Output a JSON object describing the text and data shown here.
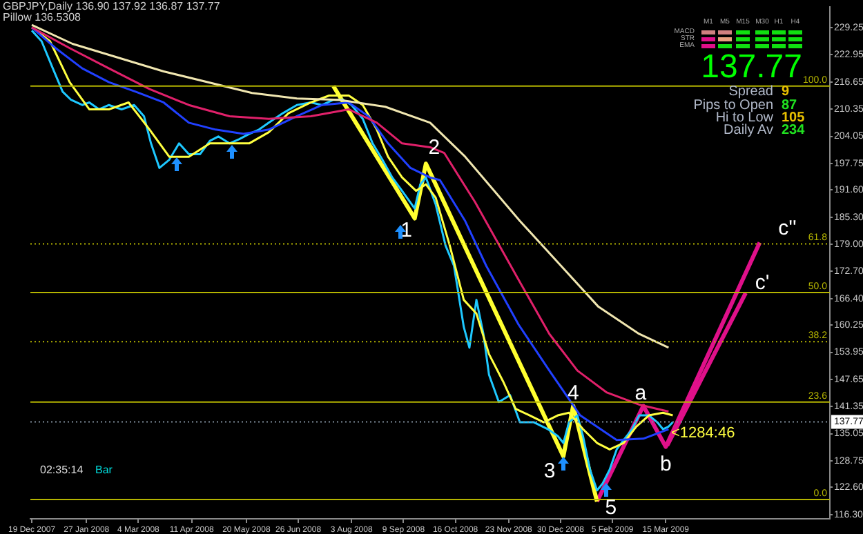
{
  "chart_data": {
    "type": "line",
    "title": "GBPJPY,Daily 136.90 137.92 136.87 137.77",
    "subtitle": "Pillow 136.5308",
    "xlim": [
      "2007-12-18",
      "2009-07-10"
    ],
    "xticks": [
      {
        "value": "2007-12-19",
        "label": "19 Dec 2007"
      },
      {
        "value": "2008-01-27",
        "label": "27 Jan 2008"
      },
      {
        "value": "2008-03-04",
        "label": "4 Mar 2008"
      },
      {
        "value": "2008-04-11",
        "label": "11 Apr 2008"
      },
      {
        "value": "2008-05-20",
        "label": "20 May 2008"
      },
      {
        "value": "2008-06-26",
        "label": "26 Jun 2008"
      },
      {
        "value": "2008-08-03",
        "label": "3 Aug 2008"
      },
      {
        "value": "2008-09-09",
        "label": "9 Sep 2008"
      },
      {
        "value": "2008-10-16",
        "label": "16 Oct 2008"
      },
      {
        "value": "2008-11-23",
        "label": "23 Nov 2008"
      },
      {
        "value": "2008-12-30",
        "label": "30 Dec 2008"
      },
      {
        "value": "2009-02-05",
        "label": "5 Feb 2009"
      },
      {
        "value": "2009-03-15",
        "label": "15 Mar 2009"
      }
    ],
    "ylim": [
      115.3,
      234.0
    ],
    "yticks": [
      {
        "value": 229.25,
        "label": "229.25"
      },
      {
        "value": 222.95,
        "label": "222.95"
      },
      {
        "value": 216.65,
        "label": "216.65"
      },
      {
        "value": 210.35,
        "label": "210.35"
      },
      {
        "value": 204.05,
        "label": "204.05"
      },
      {
        "value": 197.75,
        "label": "197.75"
      },
      {
        "value": 191.6,
        "label": "191.60"
      },
      {
        "value": 185.3,
        "label": "185.30"
      },
      {
        "value": 179.0,
        "label": "179.00"
      },
      {
        "value": 172.7,
        "label": "172.70"
      },
      {
        "value": 166.4,
        "label": "166.40"
      },
      {
        "value": 160.25,
        "label": "160.25"
      },
      {
        "value": 153.95,
        "label": "153.95"
      },
      {
        "value": 147.65,
        "label": "147.65"
      },
      {
        "value": 141.35,
        "label": "141.35"
      },
      {
        "value": 135.05,
        "label": "135.05"
      },
      {
        "value": 128.75,
        "label": "128.75"
      },
      {
        "value": 122.6,
        "label": "122.60"
      },
      {
        "value": 116.3,
        "label": "116.30"
      }
    ],
    "grid": false,
    "legend": false,
    "marker": "none",
    "series": [
      {
        "color": "#f0e6b0",
        "x": [
          "2007-12-19",
          "2008-01-17",
          "2008-03-22",
          "2008-05-24",
          "2008-06-25",
          "2008-07-25",
          "2008-08-27",
          "2008-09-28",
          "2008-10-23",
          "2008-12-01",
          "2009-01-01",
          "2009-01-26",
          "2009-02-24",
          "2009-03-17"
        ],
        "values": [
          229.9,
          225.5,
          219.1,
          214.1,
          212.8,
          212.5,
          210.9,
          207.2,
          199.3,
          184.4,
          173.4,
          164.5,
          158.2,
          155.0
        ]
      },
      {
        "color": "#e0206a",
        "x": [
          "2007-12-19",
          "2008-01-15",
          "2008-02-12",
          "2008-03-12",
          "2008-04-09",
          "2008-05-08",
          "2008-06-05",
          "2008-07-05",
          "2008-08-01",
          "2008-08-21",
          "2008-09-08",
          "2008-09-28",
          "2008-10-08",
          "2008-10-30",
          "2008-11-30",
          "2008-12-22",
          "2009-01-11",
          "2009-02-01",
          "2009-02-24",
          "2009-03-17"
        ],
        "values": [
          229.3,
          224.5,
          219.8,
          215.0,
          211.3,
          208.7,
          208.1,
          208.7,
          210.3,
          207.2,
          202.4,
          201.5,
          200.2,
          188.8,
          170.8,
          158.2,
          149.7,
          144.6,
          141.8,
          140.2
        ]
      },
      {
        "color": "#2040ff",
        "x": [
          "2007-12-19",
          "2008-01-05",
          "2008-01-24",
          "2008-02-12",
          "2008-03-02",
          "2008-03-22",
          "2008-04-09",
          "2008-04-28",
          "2008-05-18",
          "2008-06-05",
          "2008-06-25",
          "2008-07-13",
          "2008-08-01",
          "2008-08-15",
          "2008-08-29",
          "2008-09-14",
          "2008-09-28",
          "2008-10-05",
          "2008-10-23",
          "2008-11-07",
          "2008-11-30",
          "2008-12-22",
          "2009-01-13",
          "2009-02-08",
          "2009-02-27",
          "2009-03-17"
        ],
        "values": [
          229.3,
          224.5,
          219.8,
          216.6,
          214.4,
          211.9,
          207.2,
          205.6,
          204.6,
          205.6,
          208.7,
          211.3,
          211.9,
          208.7,
          202.4,
          196.7,
          194.5,
          193.9,
          184.4,
          174.0,
          160.4,
          149.7,
          139.3,
          133.6,
          133.9,
          136.1
        ]
      },
      {
        "color": "#ffff40",
        "x": [
          "2007-12-19",
          "2008-01-01",
          "2008-01-15",
          "2008-01-29",
          "2008-02-12",
          "2008-02-26",
          "2008-03-12",
          "2008-03-26",
          "2008-04-09",
          "2008-04-24",
          "2008-05-08",
          "2008-05-22",
          "2008-06-05",
          "2008-06-19",
          "2008-07-05",
          "2008-07-18",
          "2008-08-01",
          "2008-08-11",
          "2008-08-21",
          "2008-08-29",
          "2008-09-08",
          "2008-09-18",
          "2008-09-25",
          "2008-10-02",
          "2008-10-12",
          "2008-10-22",
          "2008-10-31",
          "2008-11-09",
          "2008-11-19",
          "2008-11-28",
          "2008-12-08",
          "2008-12-18",
          "2008-12-28",
          "2009-01-05",
          "2009-01-15",
          "2009-01-25",
          "2009-02-03",
          "2009-02-13",
          "2009-02-22",
          "2009-03-03",
          "2009-03-13",
          "2009-03-20"
        ],
        "values": [
          229.3,
          226.1,
          216.6,
          210.3,
          210.3,
          211.9,
          205.6,
          199.3,
          199.3,
          202.4,
          202.4,
          202.4,
          205.0,
          209.4,
          211.9,
          213.5,
          213.5,
          211.3,
          205.6,
          199.3,
          194.5,
          191.4,
          192.9,
          189.8,
          178.7,
          166.1,
          162.9,
          153.5,
          147.2,
          140.8,
          139.3,
          137.7,
          139.3,
          139.9,
          136.1,
          132.9,
          131.4,
          132.9,
          136.7,
          139.3,
          139.9,
          139.3
        ]
      },
      {
        "color": "#1ec8ff",
        "x": [
          "2007-12-19",
          "2007-12-26",
          "2008-01-03",
          "2008-01-10",
          "2008-01-16",
          "2008-01-24",
          "2008-01-29",
          "2008-02-05",
          "2008-02-12",
          "2008-02-21",
          "2008-03-01",
          "2008-03-08",
          "2008-03-13",
          "2008-03-19",
          "2008-03-26",
          "2008-04-02",
          "2008-04-09",
          "2008-04-17",
          "2008-04-24",
          "2008-04-30",
          "2008-05-08",
          "2008-05-15",
          "2008-05-22",
          "2008-05-29",
          "2008-06-05",
          "2008-06-15",
          "2008-06-25",
          "2008-07-05",
          "2008-07-13",
          "2008-07-21",
          "2008-07-28",
          "2008-08-03",
          "2008-08-11",
          "2008-08-18",
          "2008-08-25",
          "2008-09-01",
          "2008-09-08",
          "2008-09-17",
          "2008-09-21",
          "2008-09-25",
          "2008-10-02",
          "2008-10-09",
          "2008-10-15",
          "2008-10-22",
          "2008-10-26",
          "2008-10-31",
          "2008-11-05",
          "2008-11-09",
          "2008-11-16",
          "2008-11-24",
          "2008-12-01",
          "2008-12-11",
          "2008-12-21",
          "2008-12-28",
          "2009-01-01",
          "2009-01-05",
          "2009-01-11",
          "2009-01-15",
          "2009-01-20",
          "2009-01-25",
          "2009-01-29",
          "2009-02-03",
          "2009-02-08",
          "2009-02-13",
          "2009-02-19",
          "2009-02-24",
          "2009-03-03",
          "2009-03-09",
          "2009-03-13",
          "2009-03-17",
          "2009-03-20"
        ],
        "values": [
          228.6,
          226.1,
          219.8,
          214.4,
          212.5,
          211.3,
          211.9,
          210.3,
          211.3,
          210.3,
          211.3,
          208.7,
          202.4,
          196.7,
          198.6,
          202.4,
          199.9,
          199.9,
          203.0,
          204.0,
          202.4,
          203.4,
          204.6,
          205.6,
          207.2,
          209.4,
          211.3,
          211.9,
          211.3,
          212.5,
          212.5,
          211.3,
          208.1,
          202.4,
          198.6,
          194.5,
          191.4,
          187.3,
          192.9,
          194.5,
          188.2,
          178.7,
          174.0,
          159.8,
          155.0,
          166.1,
          158.2,
          148.7,
          142.4,
          144.0,
          137.7,
          137.7,
          136.1,
          134.5,
          132.9,
          137.7,
          139.3,
          134.5,
          126.7,
          121.9,
          123.5,
          126.7,
          131.4,
          133.6,
          136.1,
          139.3,
          139.3,
          137.7,
          136.1,
          136.7,
          137.7
        ]
      },
      {
        "color": "#ffff30",
        "x": [
          "2008-07-21",
          "2008-09-17",
          "2008-09-25",
          "2009-01-01",
          "2009-01-08",
          "2009-01-25"
        ],
        "values": [
          215.7,
          185.0,
          197.7,
          129.8,
          141.5,
          119.3
        ]
      },
      {
        "color": "#e0108a",
        "x": [
          "2009-01-25",
          "2009-02-27",
          "2009-03-15",
          "2009-05-21"
        ],
        "values": [
          119.3,
          141.5,
          132.0,
          179.4
        ]
      },
      {
        "color": "#e0108a",
        "x": [
          "2009-03-16",
          "2009-05-11"
        ],
        "values": [
          132.3,
          167.7
        ]
      }
    ],
    "ref_lines": [
      {
        "axis": "y",
        "value": 215.7,
        "color": "#b4b400",
        "line_style": "solid"
      },
      {
        "axis": "y",
        "value": 179.1,
        "color": "#b4b400",
        "line_style": "dotted"
      },
      {
        "axis": "y",
        "value": 167.8,
        "color": "#b4b400",
        "line_style": "solid"
      },
      {
        "axis": "y",
        "value": 156.4,
        "color": "#b4b400",
        "line_style": "dotted"
      },
      {
        "axis": "y",
        "value": 142.4,
        "color": "#b4b400",
        "line_style": "solid"
      },
      {
        "axis": "y",
        "value": 119.8,
        "color": "#b4b400",
        "line_style": "solid"
      },
      {
        "axis": "y",
        "value": 137.77,
        "label": "137.77",
        "line_style": "dotted"
      }
    ],
    "annotations": [
      "<1284:46",
      "02:35:14",
      "Bar",
      "Spread",
      "9",
      "Pips to Open",
      "87",
      "Hi to Low",
      "105",
      "Daily Av",
      "234",
      "137.77",
      "MACD",
      "STR",
      "EMA",
      "M1",
      "M5",
      "M15",
      "M30",
      "H1",
      "H4",
      {
        "text": "1",
        "x": "2008-09-17",
        "y": 185.0
      },
      {
        "text": "2",
        "x": "2008-09-25",
        "y": 197.7
      },
      {
        "text": "3",
        "x": "2009-01-01",
        "y": 129.8
      },
      {
        "text": "4",
        "x": "2009-01-08",
        "y": 141.5
      },
      {
        "text": "5",
        "x": "2009-01-25",
        "y": 119.3
      },
      {
        "text": "a",
        "x": "2009-02-27",
        "y": 141.5
      },
      {
        "text": "b",
        "x": "2009-03-15",
        "y": 132.0
      },
      {
        "text": "c''",
        "x": "2009-05-21",
        "y": 179.4
      },
      {
        "text": "c'",
        "x": "2009-05-11",
        "y": 167.7
      },
      {
        "text": "100.0",
        "x": "2009-07-10",
        "y": 215.7
      },
      {
        "text": "61.8",
        "x": "2009-07-10",
        "y": 179.1
      },
      {
        "text": "50.0",
        "x": "2009-07-10",
        "y": 167.8
      },
      {
        "text": "38.2",
        "x": "2009-07-10",
        "y": 156.4
      },
      {
        "text": "23.6",
        "x": "2009-07-10",
        "y": 142.4
      },
      {
        "text": "0.0",
        "x": "2009-07-10",
        "y": 119.8
      }
    ]
  }
}
